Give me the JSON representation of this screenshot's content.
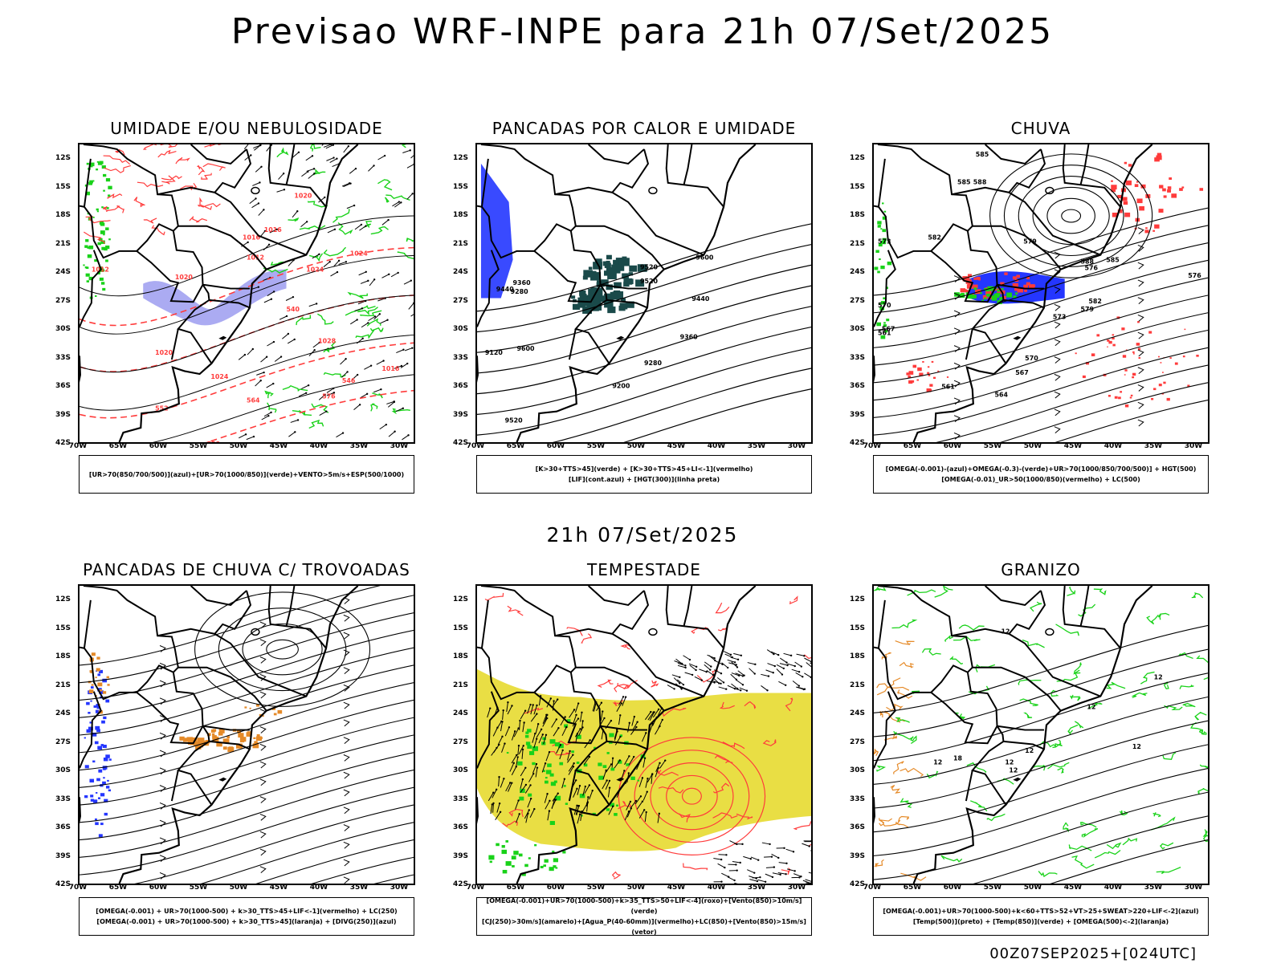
{
  "title": "Previsao WRF-INPE  para 21h 07/Set/2025",
  "mid_title": "21h 07/Set/2025",
  "footer": "00Z07SEP2025+[024UTC]",
  "lat_labels": [
    "12S",
    "15S",
    "18S",
    "21S",
    "24S",
    "27S",
    "30S",
    "33S",
    "36S",
    "39S",
    "42S"
  ],
  "lon_labels": [
    "70W",
    "65W",
    "60W",
    "55W",
    "50W",
    "45W",
    "40W",
    "35W",
    "30W"
  ],
  "colors": {
    "red": "#ff3b3b",
    "green": "#19d219",
    "blue": "#2436ff",
    "lavender": "#9c9cf0",
    "darkteal": "#1a4a4a",
    "orange": "#e58a28",
    "yellow": "#e8dc3a"
  },
  "panels": [
    {
      "title": "UMIDADE E/OU NEBULOSIDADE",
      "legend": [
        "[UR>70(850/700/500)](azul)+[UR>70(1000/850)](verde)+VENTO>5m/s+ESP(500/1000)"
      ],
      "labels": [
        "1020",
        "1016",
        "1012",
        "1016",
        "1020",
        "1024",
        "1028",
        "1024",
        "1016",
        "1012",
        "1020",
        "1024",
        "576",
        "570",
        "564",
        "558",
        "552",
        "546",
        "540"
      ]
    },
    {
      "title": "PANCADAS POR CALOR E UMIDADE",
      "legend": [
        "[K>30+TTS>45](verde) + [K>30+TTS>45+LI<-1](vermelho)",
        "[LIF](cont.azul) + [HGT(300)](linha preta)"
      ],
      "labels": [
        "9600",
        "9520",
        "9440",
        "9360",
        "9280",
        "9200",
        "9600",
        "9520",
        "9440",
        "9360",
        "9280",
        "9520",
        "9120"
      ]
    },
    {
      "title": "CHUVA",
      "legend": [
        "[OMEGA(-0.001)-(azul)+OMEGA(-0.3)-(verde)+UR>70(1000/850/700/500)] + HGT(500)",
        "[OMEGA(-0.01)_UR>50(1000/850)(vermelho) + LC(500)"
      ],
      "labels": [
        "585",
        "585",
        "588",
        "582",
        "579",
        "576",
        "573",
        "570",
        "567",
        "564",
        "561",
        "576",
        "579",
        "582",
        "585",
        "588",
        "573",
        "570",
        "567",
        "561"
      ]
    },
    {
      "title": "PANCADAS DE CHUVA C/ TROVOADAS",
      "legend": [
        "[OMEGA(-0.001) + UR>70(1000-500) + k>30_TTS>45+LIF<-1](vermelho) + LC(250)",
        "[OMEGA(-0.001) + UR>70(1000-500) + k>30_TTS>45](laranja) + [DIVG(250)](azul)"
      ],
      "labels": []
    },
    {
      "title": "TEMPESTADE",
      "legend": [
        "[OMEGA(-0.001)+UR>70(1000-500)+k>35_TTS>50+LIF<-4](roxo)+[Vento(850)>10m/s](verde)",
        "[CJ(250)>30m/s](amarelo)+[Agua_P(40-60mm)](vermelho)+LC(850)+[Vento(850)>15m/s](vetor)"
      ],
      "labels": []
    },
    {
      "title": "GRANIZO",
      "legend": [
        "[OMEGA(-0.001)+UR>70(1000-500)+k<60+TTS>52+VT>25+SWEAT>220+LIF<-2](azul)",
        "[Temp(500)](preto) + [Temp(850)](verde) + [OMEGA(500)<-2](laranja)"
      ],
      "labels": [
        "12",
        "12",
        "12",
        "12",
        "12",
        "12",
        "12",
        "18",
        "12"
      ]
    }
  ]
}
